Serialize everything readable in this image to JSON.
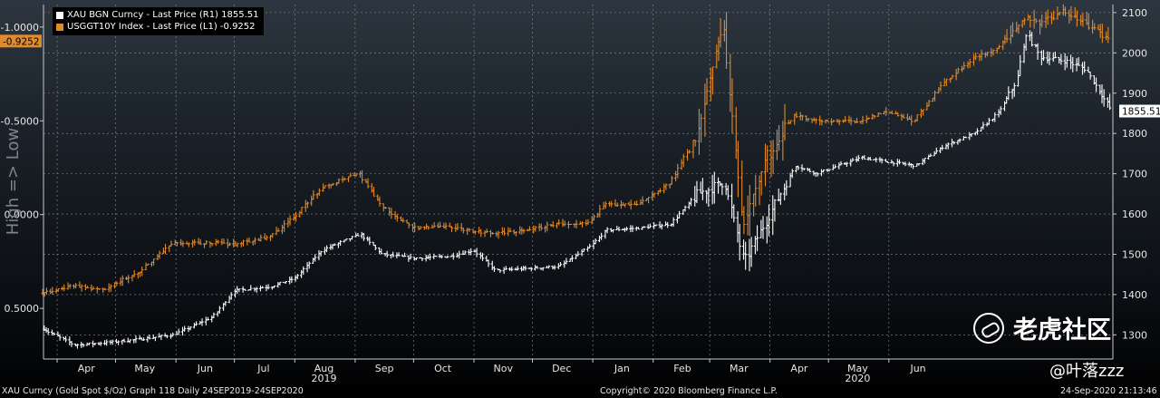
{
  "chart_data": {
    "type": "bar",
    "legend_position": "top-left",
    "grid": true,
    "left_axis_label": "High => Low",
    "left_axis": {
      "reversed": true,
      "ylim": [
        -1.12,
        0.77
      ],
      "ticks": [
        "-1.0000",
        "-0.5000",
        "0.0000",
        "0.5000"
      ],
      "tick_values": [
        -1.0,
        -0.5,
        0.0,
        0.5
      ]
    },
    "right_axis": {
      "ylim": [
        1240,
        2120
      ],
      "ticks": [
        "2100",
        "2000",
        "1900",
        "1800",
        "1700",
        "1600",
        "1500",
        "1400",
        "1300"
      ],
      "tick_values": [
        2100,
        2000,
        1900,
        1800,
        1700,
        1600,
        1500,
        1400,
        1300
      ]
    },
    "x_ticks": [
      "Apr",
      "May",
      "Jun",
      "Jul",
      "Aug",
      "Sep",
      "Oct",
      "Nov",
      "Dec",
      "Jan",
      "Feb",
      "Mar",
      "Apr",
      "May",
      "Jun"
    ],
    "x_tick_dates": [
      "2019-04-01",
      "2019-05-01",
      "2019-06-01",
      "2019-07-01",
      "2019-08-01",
      "2019-09-01",
      "2019-10-01",
      "2019-11-01",
      "2019-12-01",
      "2020-01-01",
      "2020-02-01",
      "2020-03-01",
      "2020-04-01",
      "2020-05-01",
      "2020-06-01"
    ],
    "year_labels": [
      {
        "text": "2019",
        "date": "2019-08-01"
      },
      {
        "text": "2020",
        "date": "2020-05-01"
      }
    ],
    "x_range": [
      "2019-03-25",
      "2020-09-24"
    ],
    "series": [
      {
        "name": "XAU BGN Curncy - Last Price (R1) 1855.51",
        "axis": "right",
        "color": "#ffffff",
        "last_value": 1855.51,
        "last_label": "1855.51",
        "dates": [
          "2019-03-25",
          "2019-04-10",
          "2019-04-25",
          "2019-05-15",
          "2019-05-31",
          "2019-06-20",
          "2019-07-01",
          "2019-07-20",
          "2019-08-01",
          "2019-08-15",
          "2019-09-04",
          "2019-09-15",
          "2019-10-01",
          "2019-10-20",
          "2019-11-01",
          "2019-11-12",
          "2019-11-30",
          "2019-12-15",
          "2019-12-31",
          "2020-01-08",
          "2020-01-25",
          "2020-02-10",
          "2020-02-24",
          "2020-03-09",
          "2020-03-19",
          "2020-03-31",
          "2020-04-14",
          "2020-04-25",
          "2020-05-18",
          "2020-05-31",
          "2020-06-15",
          "2020-06-30",
          "2020-07-15",
          "2020-07-27",
          "2020-08-06",
          "2020-08-11",
          "2020-08-18",
          "2020-08-31",
          "2020-09-10",
          "2020-09-24"
        ],
        "values": [
          1315,
          1275,
          1280,
          1290,
          1300,
          1345,
          1410,
          1420,
          1440,
          1510,
          1550,
          1500,
          1490,
          1495,
          1510,
          1460,
          1465,
          1470,
          1520,
          1560,
          1565,
          1575,
          1650,
          1680,
          1480,
          1590,
          1720,
          1700,
          1740,
          1730,
          1720,
          1770,
          1800,
          1850,
          1930,
          2050,
          1990,
          1980,
          1960,
          1855.51
        ]
      },
      {
        "name": "USGGT10Y Index - Last Price (L1) -0.9252",
        "axis": "left",
        "color": "#e08a2c",
        "last_value": -0.9252,
        "last_label": "-0.9252",
        "dates": [
          "2019-03-25",
          "2019-04-10",
          "2019-04-25",
          "2019-05-15",
          "2019-05-31",
          "2019-06-20",
          "2019-07-01",
          "2019-07-20",
          "2019-08-01",
          "2019-08-15",
          "2019-09-04",
          "2019-09-15",
          "2019-10-01",
          "2019-10-20",
          "2019-11-01",
          "2019-11-12",
          "2019-11-30",
          "2019-12-15",
          "2019-12-31",
          "2020-01-08",
          "2020-01-25",
          "2020-02-10",
          "2020-02-24",
          "2020-03-09",
          "2020-03-19",
          "2020-03-31",
          "2020-04-14",
          "2020-04-25",
          "2020-05-18",
          "2020-05-31",
          "2020-06-15",
          "2020-06-30",
          "2020-07-15",
          "2020-07-27",
          "2020-08-06",
          "2020-08-11",
          "2020-08-18",
          "2020-08-31",
          "2020-09-10",
          "2020-09-24"
        ],
        "values": [
          0.42,
          0.38,
          0.4,
          0.3,
          0.15,
          0.15,
          0.16,
          0.12,
          0.02,
          -0.14,
          -0.22,
          -0.05,
          0.07,
          0.06,
          0.09,
          0.1,
          0.08,
          0.05,
          0.04,
          -0.05,
          -0.06,
          -0.16,
          -0.42,
          -1.02,
          0.05,
          -0.3,
          -0.53,
          -0.5,
          -0.5,
          -0.55,
          -0.5,
          -0.7,
          -0.83,
          -0.88,
          -1.0,
          -1.05,
          -1.02,
          -1.08,
          -1.02,
          -0.9252
        ]
      }
    ]
  },
  "footer": {
    "left": "XAU Curncy (Gold Spot  $/Oz) Graph 118  Daily 24SEP2019-24SEP2020",
    "center": "Copyright© 2020 Bloomberg Finance L.P.",
    "right": "24-Sep-2020 21:13:46"
  },
  "watermark": {
    "brand": "老虎社区",
    "user": "@叶落zzz"
  }
}
